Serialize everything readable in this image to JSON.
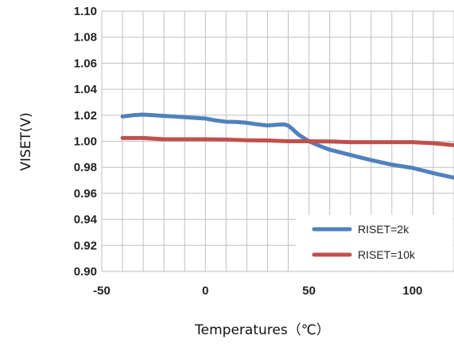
{
  "chart_data": {
    "type": "line",
    "xlabel": "Temperatures（℃）",
    "ylabel": "VISET(V)",
    "xlim": [
      -50,
      120
    ],
    "ylim": [
      0.9,
      1.1
    ],
    "xticks": [
      -50,
      0,
      50,
      100
    ],
    "xtick_labels": [
      "-50",
      "0",
      "50",
      "100"
    ],
    "yticks": [
      0.9,
      0.92,
      0.94,
      0.96,
      0.98,
      1.0,
      1.02,
      1.04,
      1.06,
      1.08,
      1.1
    ],
    "ytick_labels": [
      "0.90",
      "0.92",
      "0.94",
      "0.96",
      "0.98",
      "1.00",
      "1.02",
      "1.04",
      "1.06",
      "1.08",
      "1.10"
    ],
    "x_grid_step": 10,
    "grid": true,
    "legend_position": "bottom-right",
    "series": [
      {
        "name": "RISET=2k",
        "color": "#4F81BD",
        "x": [
          -40,
          -35,
          -30,
          -25,
          -20,
          -15,
          -10,
          -5,
          0,
          5,
          10,
          15,
          20,
          25,
          30,
          35,
          38,
          40,
          42,
          45,
          50,
          55,
          60,
          70,
          80,
          90,
          100,
          110,
          120
        ],
        "y": [
          1.019,
          1.02,
          1.0205,
          1.02,
          1.0195,
          1.019,
          1.0185,
          1.018,
          1.0175,
          1.016,
          1.015,
          1.0148,
          1.0142,
          1.013,
          1.0122,
          1.0128,
          1.013,
          1.012,
          1.0095,
          1.005,
          1.0,
          0.9965,
          0.9935,
          0.9895,
          0.9855,
          0.982,
          0.9795,
          0.9755,
          0.972
        ]
      },
      {
        "name": "RISET=10k",
        "color": "#C0504D",
        "x": [
          -40,
          -30,
          -20,
          -10,
          0,
          10,
          20,
          30,
          40,
          50,
          60,
          70,
          80,
          90,
          100,
          110,
          120
        ],
        "y": [
          1.0025,
          1.0025,
          1.0015,
          1.0015,
          1.0015,
          1.0013,
          1.0008,
          1.0006,
          1.0,
          1.0,
          0.9998,
          0.9993,
          0.9993,
          0.9993,
          0.9993,
          0.9985,
          0.997
        ]
      }
    ]
  }
}
